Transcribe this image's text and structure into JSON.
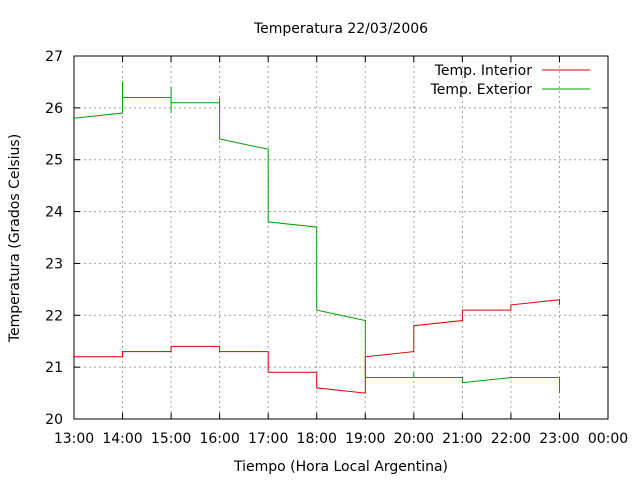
{
  "chart_data": {
    "type": "line",
    "title": "Temperatura 22/03/2006",
    "xlabel": "Tiempo (Hora Local Argentina)",
    "ylabel": "Temperatura (Grados Celsius)",
    "x_ticks": [
      "13:00",
      "14:00",
      "15:00",
      "16:00",
      "17:00",
      "18:00",
      "19:00",
      "20:00",
      "21:00",
      "22:00",
      "23:00",
      "00:00"
    ],
    "y_ticks": [
      "20",
      "21",
      "22",
      "23",
      "24",
      "25",
      "26",
      "27"
    ],
    "xlim": [
      "13:00",
      "00:00"
    ],
    "ylim": [
      20,
      27
    ],
    "grid": true,
    "legend_position": "top-right",
    "series": [
      {
        "name": "Temp. Interior",
        "color": "#e00000",
        "points": [
          [
            "13:00",
            21.2
          ],
          [
            "14:00",
            21.2
          ],
          [
            "14:00",
            21.3
          ],
          [
            "15:00",
            21.3
          ],
          [
            "15:00",
            21.4
          ],
          [
            "16:00",
            21.4
          ],
          [
            "16:00",
            21.3
          ],
          [
            "17:00",
            21.3
          ],
          [
            "17:00",
            20.9
          ],
          [
            "18:00",
            20.9
          ],
          [
            "18:00",
            20.6
          ],
          [
            "19:00",
            20.5
          ],
          [
            "19:00",
            21.2
          ],
          [
            "20:00",
            21.3
          ],
          [
            "20:00",
            21.8
          ],
          [
            "21:00",
            21.9
          ],
          [
            "21:00",
            22.1
          ],
          [
            "22:00",
            22.1
          ],
          [
            "22:00",
            22.2
          ],
          [
            "23:00",
            22.3
          ],
          [
            "23:00",
            22.2
          ]
        ]
      },
      {
        "name": "Temp. Exterior",
        "color": "#00a000",
        "points": [
          [
            "13:00",
            25.8
          ],
          [
            "14:00",
            25.9
          ],
          [
            "14:00",
            26.5
          ],
          [
            "14:00",
            26.2
          ],
          [
            "15:00",
            26.2
          ],
          [
            "15:00",
            26.4
          ],
          [
            "15:00",
            25.9
          ],
          [
            "15:00",
            26.1
          ],
          [
            "16:00",
            26.1
          ],
          [
            "16:00",
            26.2
          ],
          [
            "16:00",
            25.4
          ],
          [
            "17:00",
            25.2
          ],
          [
            "17:00",
            23.8
          ],
          [
            "18:00",
            23.7
          ],
          [
            "18:00",
            22.1
          ],
          [
            "19:00",
            21.9
          ],
          [
            "19:00",
            20.8
          ],
          [
            "20:00",
            20.8
          ],
          [
            "20:00",
            20.9
          ],
          [
            "20:00",
            20.8
          ],
          [
            "21:00",
            20.8
          ],
          [
            "21:00",
            20.7
          ],
          [
            "22:00",
            20.8
          ],
          [
            "23:00",
            20.8
          ],
          [
            "23:00",
            20.5
          ]
        ]
      }
    ]
  }
}
